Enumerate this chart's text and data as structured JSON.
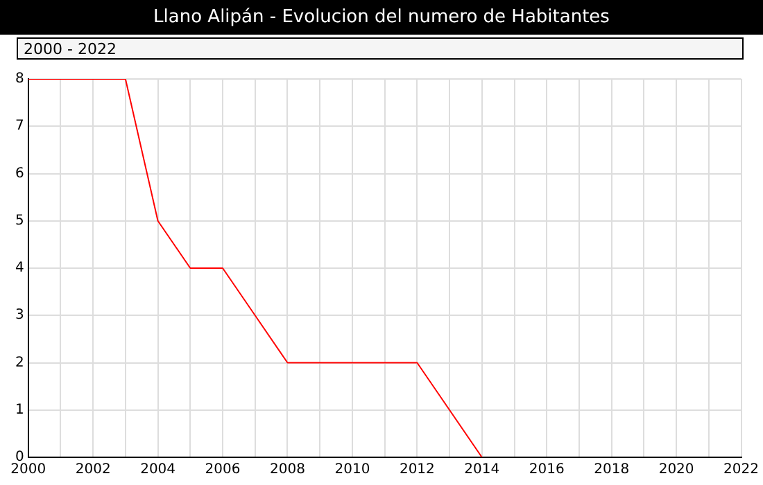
{
  "chart_data": {
    "type": "line",
    "title": "Llano Alipán - Evolucion del numero de Habitantes",
    "subtitle": "2000 - 2022",
    "x": [
      2000,
      2001,
      2002,
      2003,
      2004,
      2005,
      2006,
      2007,
      2008,
      2009,
      2010,
      2011,
      2012,
      2013,
      2014
    ],
    "series": [
      {
        "color": "#ff0000",
        "values": [
          8,
          8,
          8,
          8,
          5,
          4,
          4,
          3,
          2,
          2,
          2,
          2,
          2,
          1,
          0
        ]
      }
    ],
    "xlim": [
      2000,
      2022
    ],
    "xticks": [
      2000,
      {
        "value": 2001,
        "label": null
      },
      2002,
      {
        "value": 2003,
        "label": null
      },
      2004,
      {
        "value": 2005,
        "label": null
      },
      2006,
      {
        "value": 2007,
        "label": null
      },
      2008,
      {
        "value": 2009,
        "label": null
      },
      2010,
      {
        "value": 2011,
        "label": null
      },
      2012,
      {
        "value": 2013,
        "label": null
      },
      2014,
      {
        "value": 2015,
        "label": null
      },
      2016,
      {
        "value": 2017,
        "label": null
      },
      2018,
      {
        "value": 2019,
        "label": null
      },
      2020,
      {
        "value": 2021,
        "label": null
      },
      2022
    ],
    "ylim": [
      0,
      8
    ],
    "yticks": [
      0,
      1,
      2,
      3,
      4,
      5,
      6,
      7,
      8
    ],
    "grid": true,
    "legend": false,
    "marker": "none",
    "line_style": "solid"
  }
}
